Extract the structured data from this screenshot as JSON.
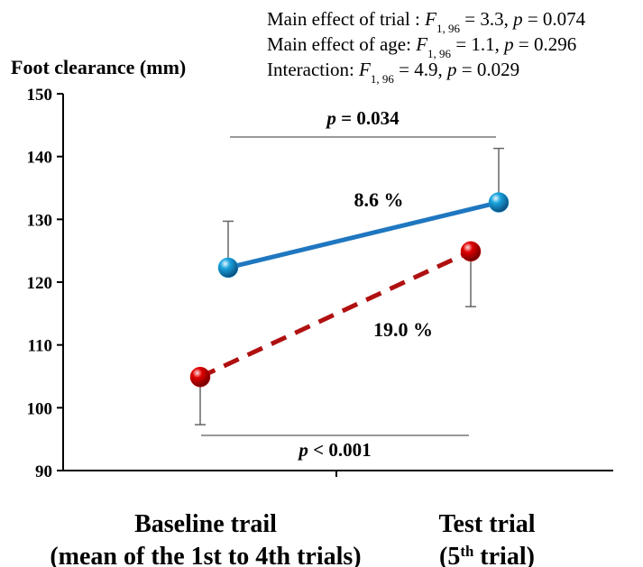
{
  "chart_data": {
    "type": "line",
    "ylabel": "Foot clearance (mm)",
    "ylim": [
      90,
      150
    ],
    "yticks": [
      90,
      100,
      110,
      120,
      130,
      140,
      150
    ],
    "categories": [
      [
        [
          {
            "text": "Baseline trail"
          }
        ],
        [
          {
            "text": "(mean of the 1st to 4th trials)"
          }
        ]
      ],
      [
        [
          {
            "text": "Test trial"
          }
        ],
        [
          {
            "text": "(5"
          },
          {
            "text": "th",
            "style": "sup"
          },
          {
            "text": " trial)"
          }
        ]
      ]
    ],
    "series": [
      {
        "color": "#1f77c0",
        "marker_color": "#1aa3dd",
        "dash": "solid",
        "error_direction": "up",
        "values": [
          122.3,
          132.7
        ],
        "errors": [
          7.4,
          8.6
        ]
      },
      {
        "color": "#b01010",
        "marker_color": "#e00000",
        "dash": "dashed",
        "error_direction": "down",
        "values": [
          104.9,
          124.9
        ],
        "errors": [
          7.6,
          8.8
        ]
      }
    ],
    "stats": [
      [
        {
          "text": "Main effect of trial : "
        },
        {
          "text": "F",
          "style": "italic"
        },
        {
          "text": "1, 96",
          "style": "sub"
        },
        {
          "text": " = 3.3, "
        },
        {
          "text": "p",
          "style": "italic"
        },
        {
          "text": " = 0.074"
        }
      ],
      [
        {
          "text": "Main effect of age: "
        },
        {
          "text": "F",
          "style": "italic"
        },
        {
          "text": "1, 96",
          "style": "sub"
        },
        {
          "text": " = 1.1, "
        },
        {
          "text": "p",
          "style": "italic"
        },
        {
          "text": " = 0.296"
        }
      ],
      [
        {
          "text": "Interaction: "
        },
        {
          "text": "F",
          "style": "italic"
        },
        {
          "text": "1, 96",
          "style": "sub"
        },
        {
          "text": " = 4.9, "
        },
        {
          "text": "p",
          "style": "italic"
        },
        {
          "text": " = 0.029"
        }
      ]
    ],
    "brackets": [
      [
        {
          "text": "p",
          "style": "italic"
        },
        {
          "text": " = 0.034"
        }
      ],
      [
        {
          "text": "p",
          "style": "italic"
        },
        {
          "text": " < 0.001"
        }
      ]
    ],
    "change_labels": [
      "8.6 %",
      "19.0 %"
    ]
  }
}
